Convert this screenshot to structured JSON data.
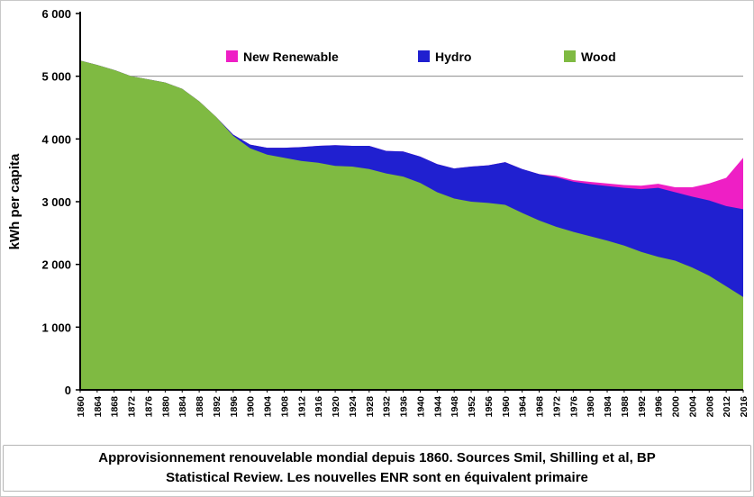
{
  "chart_data": {
    "type": "area",
    "stacked": true,
    "title": "",
    "xlabel": "",
    "ylabel": "kWh per capita",
    "ylim": [
      0,
      6000
    ],
    "grid": true,
    "gridline_color": "#8c8c8c",
    "axis_color": "#000000",
    "y_ticks": [
      0,
      1000,
      2000,
      3000,
      4000,
      5000,
      6000
    ],
    "y_tick_labels": [
      "0",
      "1 000",
      "2 000",
      "3 000",
      "4 000",
      "5 000",
      "6 000"
    ],
    "categories": [
      "1860",
      "1864",
      "1868",
      "1872",
      "1876",
      "1880",
      "1884",
      "1888",
      "1892",
      "1896",
      "1900",
      "1904",
      "1908",
      "1912",
      "1916",
      "1920",
      "1924",
      "1928",
      "1932",
      "1936",
      "1940",
      "1944",
      "1948",
      "1952",
      "1956",
      "1960",
      "1964",
      "1968",
      "1972",
      "1976",
      "1980",
      "1984",
      "1988",
      "1992",
      "1996",
      "2000",
      "2004",
      "2008",
      "2012",
      "2016"
    ],
    "series": [
      {
        "name": "Wood",
        "color": "#7FBA42",
        "values": [
          5250,
          5180,
          5100,
          5000,
          4950,
          4900,
          4800,
          4600,
          4350,
          4050,
          3850,
          3750,
          3700,
          3650,
          3620,
          3570,
          3560,
          3520,
          3450,
          3400,
          3300,
          3150,
          3050,
          3000,
          2980,
          2950,
          2820,
          2700,
          2600,
          2520,
          2450,
          2380,
          2300,
          2200,
          2120,
          2060,
          1950,
          1820,
          1650,
          1480
        ]
      },
      {
        "name": "Hydro",
        "color": "#2020D0",
        "values": [
          0,
          0,
          0,
          0,
          0,
          0,
          0,
          0,
          0,
          20,
          60,
          110,
          160,
          220,
          270,
          330,
          330,
          370,
          360,
          400,
          420,
          450,
          480,
          560,
          600,
          680,
          700,
          740,
          790,
          800,
          830,
          870,
          920,
          1000,
          1100,
          1090,
          1130,
          1200,
          1280,
          1400
        ]
      },
      {
        "name": "New Renewable",
        "color": "#EE1FC5",
        "values": [
          0,
          0,
          0,
          0,
          0,
          0,
          0,
          0,
          0,
          0,
          0,
          0,
          0,
          0,
          0,
          0,
          0,
          0,
          0,
          0,
          0,
          0,
          0,
          0,
          0,
          0,
          0,
          0,
          20,
          25,
          35,
          40,
          45,
          55,
          65,
          80,
          150,
          270,
          450,
          820
        ]
      }
    ],
    "legend": {
      "position": "top-inside",
      "order": [
        2,
        1,
        0
      ]
    }
  },
  "caption": {
    "line1": "Approvisionnement renouvelable mondial depuis 1860. Sources Smil, Shilling et al, BP",
    "line2": "Statistical Review. Les nouvelles ENR sont en équivalent primaire"
  }
}
